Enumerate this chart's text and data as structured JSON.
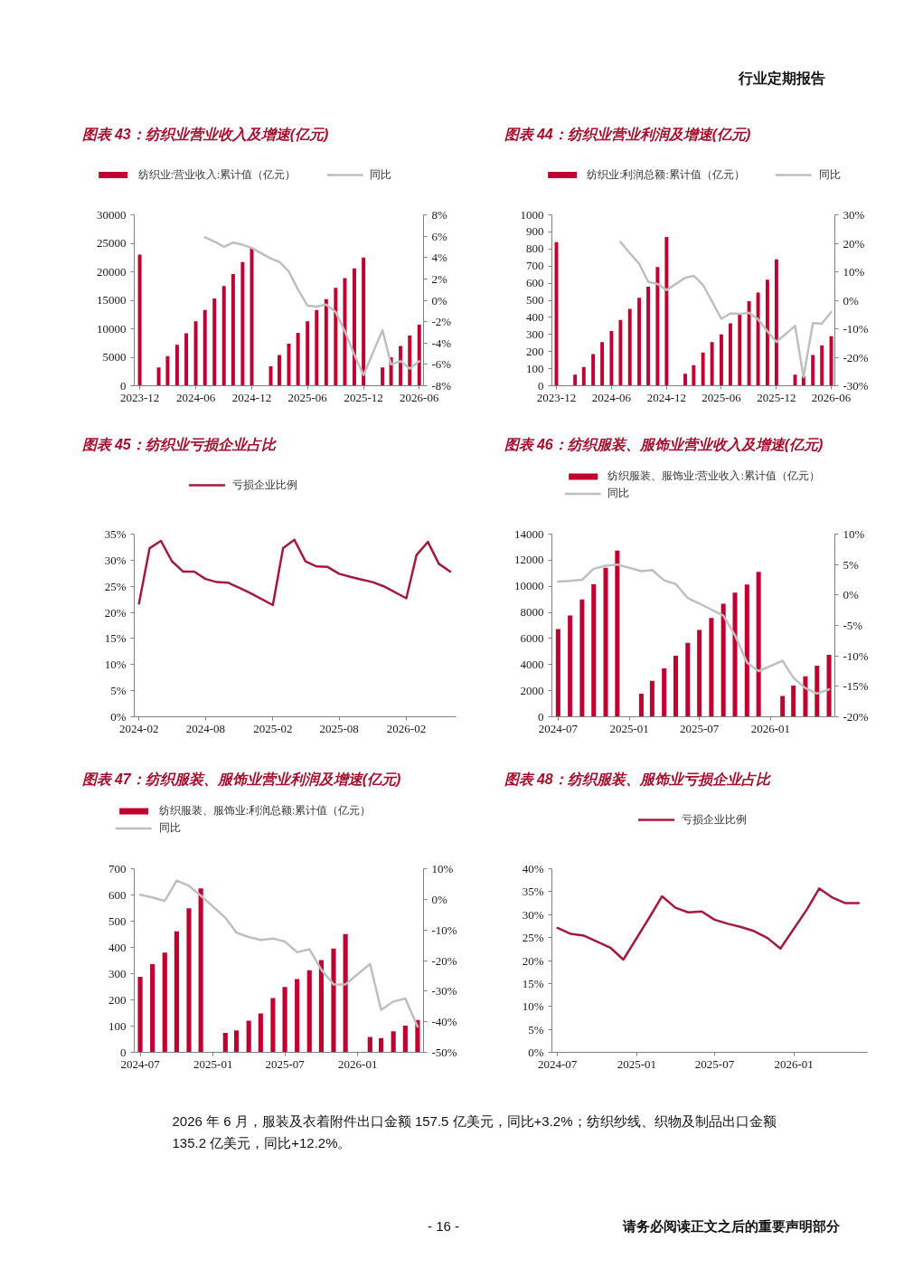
{
  "chart_data": [
    {
      "type": "other",
      "annotations": [
        "行业定期报告"
      ]
    },
    {
      "type": "bar",
      "title": "图表 43：纺织业营业收入及增速(亿元)",
      "x": [
        "2023-12",
        "2024-02",
        "2024-03",
        "2024-04",
        "2024-05",
        "2024-06",
        "2024-07",
        "2024-08",
        "2024-09",
        "2024-10",
        "2024-11",
        "2024-12",
        "2025-02",
        "2025-03",
        "2025-04",
        "2025-05",
        "2025-06",
        "2025-07",
        "2025-08",
        "2025-09",
        "2025-10",
        "2025-11",
        "2025-12",
        "2026-02",
        "2026-03",
        "2026-04",
        "2026-05",
        "2026-06"
      ],
      "series": [
        {
          "name": "纺织业:营业收入:累计值（亿元）",
          "type": "bar",
          "color": "#c00030",
          "values": [
            23000,
            3200,
            5200,
            7200,
            9200,
            11300,
            13300,
            15300,
            17500,
            19600,
            21700,
            24100,
            3400,
            5400,
            7400,
            9300,
            11300,
            13300,
            15200,
            17200,
            18900,
            20600,
            22500,
            3200,
            5000,
            7000,
            8800,
            10700
          ]
        },
        {
          "name": "同比",
          "type": "line",
          "axis": "y2",
          "color": "#bfbfbf",
          "x": [
            "2024-07",
            "2024-08",
            "2024-09",
            "2024-10",
            "2024-11",
            "2024-12",
            "2025-02",
            "2025-03",
            "2025-04",
            "2025-05",
            "2025-06",
            "2025-07",
            "2025-08",
            "2025-09",
            "2025-10",
            "2025-11",
            "2025-12",
            "2026-02",
            "2026-03",
            "2026-04",
            "2026-05",
            "2026-06"
          ],
          "values": [
            5.9,
            5.5,
            5.0,
            5.4,
            5.2,
            4.9,
            3.9,
            3.6,
            2.7,
            1.0,
            -0.5,
            -0.6,
            -0.4,
            -1.1,
            -2.9,
            -5.1,
            -7.0,
            -2.8,
            -6.0,
            -5.7,
            -6.4,
            -5.7
          ]
        }
      ],
      "xlim": [
        "2023-11-13",
        "2026-06-15"
      ],
      "xticks": [
        "2023-12",
        "2024-06",
        "2024-12",
        "2025-06",
        "2025-12",
        "2026-06"
      ],
      "ylim": [
        0,
        30000
      ],
      "yticks": [
        0,
        5000,
        10000,
        15000,
        20000,
        25000,
        30000
      ],
      "y2lim": [
        -8,
        8
      ],
      "y2ticks": [
        {
          "value": -8,
          "label": "-8%"
        },
        {
          "value": -6,
          "label": "-6%"
        },
        {
          "value": -4,
          "label": "-4%"
        },
        {
          "value": -2,
          "label": "-2%"
        },
        {
          "value": 0,
          "label": "0%"
        },
        {
          "value": 2,
          "label": "2%"
        },
        {
          "value": 4,
          "label": "4%"
        },
        {
          "value": 6,
          "label": "6%"
        },
        {
          "value": 8,
          "label": "8%"
        }
      ],
      "grid": false,
      "legend": "top"
    },
    {
      "type": "bar",
      "title": "图表 44：纺织业营业利润及增速(亿元)",
      "x": [
        "2023-12",
        "2024-02",
        "2024-03",
        "2024-04",
        "2024-05",
        "2024-06",
        "2024-07",
        "2024-08",
        "2024-09",
        "2024-10",
        "2024-11",
        "2024-12",
        "2025-02",
        "2025-03",
        "2025-04",
        "2025-05",
        "2025-06",
        "2025-07",
        "2025-08",
        "2025-09",
        "2025-10",
        "2025-11",
        "2025-12",
        "2026-02",
        "2026-03",
        "2026-04",
        "2026-05",
        "2026-06"
      ],
      "series": [
        {
          "name": "纺织业:利润总额:累计值（亿元）",
          "type": "bar",
          "color": "#c00030",
          "values": [
            840,
            65,
            110,
            185,
            255,
            320,
            385,
            450,
            515,
            580,
            695,
            870,
            70,
            120,
            195,
            255,
            300,
            365,
            425,
            495,
            545,
            620,
            740,
            65,
            55,
            180,
            235,
            290
          ]
        },
        {
          "name": "同比",
          "type": "line",
          "axis": "y2",
          "color": "#bfbfbf",
          "x": [
            "2024-07",
            "2024-08",
            "2024-09",
            "2024-10",
            "2024-11",
            "2024-12",
            "2025-02",
            "2025-03",
            "2025-04",
            "2025-05",
            "2025-06",
            "2025-07",
            "2025-08",
            "2025-09",
            "2025-10",
            "2025-11",
            "2025-12",
            "2026-02",
            "2026-03",
            "2026-04",
            "2026-05",
            "2026-06"
          ],
          "values": [
            20.5,
            16.5,
            12.8,
            6.5,
            5.7,
            3.6,
            7.9,
            8.6,
            5.4,
            -0.4,
            -6.5,
            -4.6,
            -4.8,
            -4.4,
            -6.7,
            -10.9,
            -14.6,
            -9.0,
            -27.0,
            -8.0,
            -8.2,
            -4.1
          ]
        }
      ],
      "xlim": [
        "2023-11-16",
        "2026-06-13"
      ],
      "xticks": [
        "2023-12",
        "2024-06",
        "2024-12",
        "2025-06",
        "2025-12",
        "2026-06"
      ],
      "ylim": [
        0,
        1000
      ],
      "yticks": [
        0,
        100,
        200,
        300,
        400,
        500,
        600,
        700,
        800,
        900,
        1000
      ],
      "y2lim": [
        -30,
        30
      ],
      "y2ticks": [
        {
          "value": -30,
          "label": "-30%"
        },
        {
          "value": -20,
          "label": "-20%"
        },
        {
          "value": -10,
          "label": "-10%"
        },
        {
          "value": 0,
          "label": "0%"
        },
        {
          "value": 10,
          "label": "10%"
        },
        {
          "value": 20,
          "label": "20%"
        },
        {
          "value": 30,
          "label": "30%"
        }
      ],
      "grid": false,
      "legend": "top"
    },
    {
      "type": "line",
      "title": "图表 45：纺织业亏损企业占比",
      "x": [
        "2024-02",
        "2024-03",
        "2024-04",
        "2024-05",
        "2024-06",
        "2024-07",
        "2024-08",
        "2024-09",
        "2024-10",
        "2024-11",
        "2024-12",
        "2025-02",
        "2025-03",
        "2025-04",
        "2025-05",
        "2025-06",
        "2025-07",
        "2025-08",
        "2025-09",
        "2025-10",
        "2025-11",
        "2025-12",
        "2026-02",
        "2026-03",
        "2026-04",
        "2026-05",
        "2026-06"
      ],
      "series": [
        {
          "name": "亏损企业比例",
          "color": "#a31a3a",
          "values": [
            21.7,
            32.3,
            33.7,
            29.8,
            27.8,
            27.8,
            26.4,
            25.8,
            25.7,
            24.7,
            23.7,
            21.4,
            32.3,
            33.9,
            29.8,
            28.8,
            28.7,
            27.4,
            26.8,
            26.3,
            25.8,
            25.0,
            22.7,
            31.0,
            33.5,
            29.3,
            27.8
          ]
        }
      ],
      "xlim": [
        "2024-01-19",
        "2026-06-17"
      ],
      "xticks": [
        "2024-02",
        "2024-08",
        "2025-02",
        "2025-08",
        "2026-02"
      ],
      "ylim": [
        0,
        35
      ],
      "yticks": [
        {
          "value": 0,
          "label": "0%"
        },
        {
          "value": 5,
          "label": "5%"
        },
        {
          "value": 10,
          "label": "10%"
        },
        {
          "value": 15,
          "label": "15%"
        },
        {
          "value": 20,
          "label": "20%"
        },
        {
          "value": 25,
          "label": "25%"
        },
        {
          "value": 30,
          "label": "30%"
        },
        {
          "value": 35,
          "label": "35%"
        }
      ],
      "grid": false,
      "legend": "top"
    },
    {
      "type": "bar",
      "title": "图表 46：纺织服装、服饰业营业收入及增速(亿元)",
      "x": [
        "2024-07",
        "2024-08",
        "2024-09",
        "2024-10",
        "2024-11",
        "2024-12",
        "2025-02",
        "2025-03",
        "2025-04",
        "2025-05",
        "2025-06",
        "2025-07",
        "2025-08",
        "2025-09",
        "2025-10",
        "2025-11",
        "2025-12",
        "2026-02",
        "2026-03",
        "2026-04",
        "2026-05",
        "2026-06"
      ],
      "series": [
        {
          "name": "纺织服装、服饰业:营业收入:累计值（亿元）",
          "type": "bar",
          "color": "#c00030",
          "values": [
            6730,
            7770,
            9000,
            10160,
            11410,
            12730,
            1770,
            2750,
            3710,
            4680,
            5660,
            6660,
            7570,
            8660,
            9520,
            10140,
            11110,
            1590,
            2390,
            3110,
            3910,
            4750
          ]
        },
        {
          "name": "同比",
          "type": "line",
          "axis": "y2",
          "color": "#bfbfbf",
          "values": [
            2.2,
            2.3,
            2.5,
            4.3,
            4.8,
            5.0,
            3.9,
            4.1,
            2.4,
            1.8,
            -0.5,
            -1.4,
            -2.4,
            -3.4,
            -6.6,
            -11.1,
            -12.5,
            -10.8,
            -13.6,
            -15.3,
            -16.2,
            -15.5
          ]
        }
      ],
      "xlim": [
        "2024-06-15",
        "2026-06-16"
      ],
      "xticks": [
        "2024-07",
        "2025-01",
        "2025-07",
        "2026-01"
      ],
      "ylim": [
        0,
        14000
      ],
      "yticks": [
        0,
        2000,
        4000,
        6000,
        8000,
        10000,
        12000,
        14000
      ],
      "y2lim": [
        -20,
        10
      ],
      "y2ticks": [
        {
          "value": -20,
          "label": "-20%"
        },
        {
          "value": -15,
          "label": "-15%"
        },
        {
          "value": -10,
          "label": "-10%"
        },
        {
          "value": -5,
          "label": "-5%"
        },
        {
          "value": 0,
          "label": "0%"
        },
        {
          "value": 5,
          "label": "5%"
        },
        {
          "value": 10,
          "label": "10%"
        }
      ],
      "grid": false,
      "legend": "top"
    },
    {
      "type": "bar",
      "title": "图表 47：纺织服装、服饰业营业利润及增速(亿元)",
      "x": [
        "2024-07",
        "2024-08",
        "2024-09",
        "2024-10",
        "2024-11",
        "2024-12",
        "2025-02",
        "2025-03",
        "2025-04",
        "2025-05",
        "2025-06",
        "2025-07",
        "2025-08",
        "2025-09",
        "2025-10",
        "2025-11",
        "2025-12",
        "2026-02",
        "2026-03",
        "2026-04",
        "2026-05",
        "2026-06"
      ],
      "series": [
        {
          "name": "纺织服装、服饰业:利润总额:累计值（亿元）",
          "type": "bar",
          "color": "#c00030",
          "values": [
            288,
            336,
            380,
            461,
            549,
            625,
            74,
            84,
            121,
            148,
            207,
            249,
            279,
            313,
            352,
            396,
            451,
            59,
            54,
            80,
            102,
            123
          ]
        },
        {
          "name": "同比",
          "type": "line",
          "axis": "y2",
          "color": "#bfbfbf",
          "values": [
            1.5,
            0.6,
            -0.5,
            6.1,
            4.4,
            1.2,
            -6.0,
            -10.9,
            -12.3,
            -13.3,
            -12.8,
            -13.8,
            -17.3,
            -16.3,
            -23.0,
            -27.8,
            -27.8,
            -21.1,
            -36.1,
            -33.4,
            -32.4,
            -41.6
          ]
        }
      ],
      "xlim": [
        "2024-06-16",
        "2026-06-16"
      ],
      "xticks": [
        "2024-07",
        "2025-01",
        "2025-07",
        "2026-01"
      ],
      "ylim": [
        0,
        700
      ],
      "yticks": [
        0,
        100,
        200,
        300,
        400,
        500,
        600,
        700
      ],
      "y2lim": [
        -50,
        10
      ],
      "y2ticks": [
        {
          "value": -50,
          "label": "-50%"
        },
        {
          "value": -40,
          "label": "-40%"
        },
        {
          "value": -30,
          "label": "-30%"
        },
        {
          "value": -20,
          "label": "-20%"
        },
        {
          "value": -10,
          "label": "-10%"
        },
        {
          "value": 0,
          "label": "0%"
        },
        {
          "value": 10,
          "label": "10%"
        }
      ],
      "grid": false,
      "legend": "top"
    },
    {
      "type": "line",
      "title": "图表 48：纺织服装、服饰业亏损企业占比",
      "x": [
        "2024-07",
        "2024-08",
        "2024-09",
        "2024-10",
        "2024-11",
        "2024-12",
        "2025-02",
        "2025-03",
        "2025-04",
        "2025-05",
        "2025-06",
        "2025-07",
        "2025-08",
        "2025-09",
        "2025-10",
        "2025-11",
        "2025-12",
        "2026-02",
        "2026-03",
        "2026-04",
        "2026-05",
        "2026-06"
      ],
      "series": [
        {
          "name": "亏损企业比例",
          "color": "#a31a3a",
          "values": [
            27.1,
            25.8,
            25.4,
            24.1,
            22.8,
            20.2,
            29.6,
            34.0,
            31.5,
            30.5,
            30.7,
            28.9,
            28.0,
            27.3,
            26.4,
            24.9,
            22.6,
            31.2,
            35.7,
            33.7,
            32.5,
            32.5
          ]
        }
      ],
      "xlim": [
        "2024-06-18",
        "2026-06-21"
      ],
      "xticks": [
        "2024-07",
        "2025-01",
        "2025-07",
        "2026-01"
      ],
      "ylim": [
        0,
        40
      ],
      "yticks": [
        {
          "value": 0,
          "label": "0%"
        },
        {
          "value": 5,
          "label": "5%"
        },
        {
          "value": 10,
          "label": "10%"
        },
        {
          "value": 15,
          "label": "15%"
        },
        {
          "value": 20,
          "label": "20%"
        },
        {
          "value": 25,
          "label": "25%"
        },
        {
          "value": 30,
          "label": "30%"
        },
        {
          "value": 35,
          "label": "35%"
        },
        {
          "value": 40,
          "label": "40%"
        }
      ],
      "grid": false,
      "legend": "top"
    },
    {
      "type": "other",
      "annotations": [
        "2026 年 6 月，服装及衣着附件出口金额 157.5 亿美元，同比+3.2%；纺织纱线、织物及制品出口金额 135.2 亿美元，同比+12.2%。",
        "- 16 -",
        "请务必阅读正文之后的重要声明部分"
      ]
    }
  ]
}
